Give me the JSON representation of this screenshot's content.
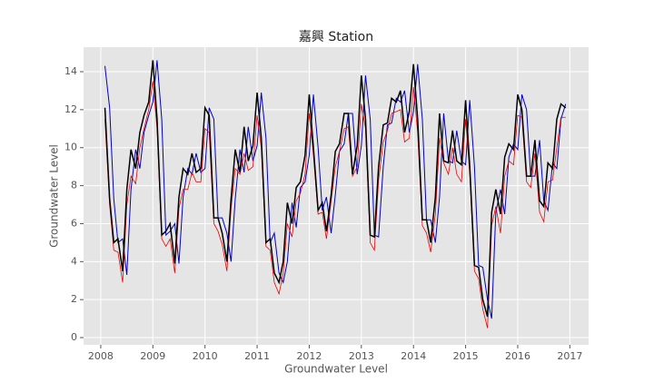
{
  "chart_data": {
    "type": "line",
    "title": "嘉興 Station",
    "x_label": "Groundwater Level",
    "y_label": "Groundwater Level",
    "x": [
      2008.08,
      2008.17,
      2008.25,
      2008.33,
      2008.42,
      2008.5,
      2008.58,
      2008.67,
      2008.75,
      2008.83,
      2008.92,
      2009,
      2009.08,
      2009.17,
      2009.25,
      2009.33,
      2009.42,
      2009.5,
      2009.58,
      2009.67,
      2009.75,
      2009.83,
      2009.92,
      2010,
      2010.08,
      2010.17,
      2010.25,
      2010.33,
      2010.42,
      2010.5,
      2010.58,
      2010.67,
      2010.75,
      2010.83,
      2010.92,
      2011,
      2011.08,
      2011.17,
      2011.25,
      2011.33,
      2011.42,
      2011.5,
      2011.58,
      2011.67,
      2011.75,
      2011.83,
      2011.92,
      2012,
      2012.08,
      2012.17,
      2012.25,
      2012.33,
      2012.42,
      2012.5,
      2012.58,
      2012.67,
      2012.75,
      2012.83,
      2012.92,
      2013,
      2013.08,
      2013.17,
      2013.25,
      2013.33,
      2013.42,
      2013.5,
      2013.58,
      2013.67,
      2013.75,
      2013.83,
      2013.92,
      2014,
      2014.08,
      2014.17,
      2014.25,
      2014.33,
      2014.42,
      2014.5,
      2014.58,
      2014.67,
      2014.75,
      2014.83,
      2014.92,
      2015,
      2015.08,
      2015.17,
      2015.25,
      2015.33,
      2015.42,
      2015.5,
      2015.58,
      2015.67,
      2015.75,
      2015.83,
      2015.92,
      2016,
      2016.08,
      2016.17,
      2016.25,
      2016.33,
      2016.42,
      2016.5,
      2016.58,
      2016.67,
      2016.75,
      2016.83,
      2016.92
    ],
    "series": [
      {
        "color": "#0000cc",
        "values": [
          14.3,
          12.1,
          7.3,
          5.0,
          5.2,
          3.3,
          7.8,
          9.9,
          8.9,
          10.8,
          11.7,
          12.4,
          14.6,
          11.5,
          5.4,
          5.6,
          6.0,
          3.9,
          7.4,
          8.9,
          8.6,
          9.7,
          8.7,
          8.9,
          12.1,
          11.5,
          6.3,
          6.3,
          5.5,
          4.0,
          7.3,
          9.9,
          8.7,
          11.1,
          9.3,
          10.1,
          12.9,
          10.5,
          5.0,
          5.5,
          3.4,
          2.9,
          4.0,
          7.1,
          5.8,
          7.9,
          8.2,
          9.6,
          12.8,
          10.0,
          6.7,
          7.4,
          5.5,
          7.5,
          9.8,
          10.2,
          11.8,
          11.8,
          8.6,
          10.1,
          13.8,
          11.5,
          5.4,
          5.3,
          9.0,
          11.2,
          11.3,
          12.6,
          12.4,
          13.0,
          10.8,
          11.9,
          14.4,
          11.5,
          6.2,
          6.2,
          5.0,
          7.4,
          11.8,
          9.3,
          9.2,
          10.9,
          9.3,
          9.1,
          12.5,
          9.0,
          3.8,
          3.7,
          2.0,
          1.0,
          6.6,
          7.8,
          6.5,
          9.5,
          10.2,
          9.9,
          12.8,
          12.0,
          8.5,
          8.5,
          10.4,
          7.2,
          6.7,
          9.2,
          8.9,
          11.5,
          12.3
        ]
      },
      {
        "color": "#ee0000",
        "values": [
          11.5,
          7.0,
          4.6,
          4.5,
          2.9,
          7.0,
          8.5,
          8.1,
          10.0,
          11.0,
          12.0,
          13.5,
          11.0,
          5.2,
          4.8,
          5.2,
          3.4,
          6.8,
          7.8,
          7.8,
          8.7,
          8.2,
          8.2,
          11.0,
          10.8,
          6.0,
          5.6,
          4.9,
          3.5,
          6.8,
          8.9,
          8.6,
          9.7,
          8.8,
          9.0,
          11.7,
          10.0,
          4.8,
          4.6,
          2.9,
          2.3,
          3.4,
          6.0,
          5.3,
          7.2,
          7.6,
          8.6,
          11.8,
          9.6,
          6.5,
          6.6,
          5.2,
          7.2,
          9.0,
          9.8,
          11.0,
          11.1,
          8.5,
          9.0,
          12.3,
          11.0,
          5.0,
          4.6,
          8.3,
          10.3,
          10.9,
          11.8,
          11.9,
          12.0,
          10.3,
          10.5,
          13.2,
          10.8,
          5.9,
          5.5,
          4.5,
          6.5,
          10.5,
          9.2,
          8.6,
          10.0,
          8.6,
          8.2,
          11.5,
          8.6,
          3.5,
          3.1,
          1.5,
          0.5,
          5.9,
          6.9,
          5.5,
          8.5,
          9.3,
          9.1,
          11.7,
          11.6,
          8.2,
          7.9,
          9.7,
          6.6,
          6.1,
          8.2,
          8.3,
          10.0,
          11.6,
          11.6
        ]
      },
      {
        "color": "#000000",
        "values": [
          12.1,
          7.3,
          5.0,
          5.2,
          3.5,
          7.8,
          9.9,
          8.9,
          10.8,
          11.7,
          12.4,
          14.6,
          11.5,
          5.4,
          5.6,
          6.0,
          3.9,
          7.4,
          8.9,
          8.6,
          9.7,
          8.7,
          8.9,
          12.1,
          11.7,
          6.3,
          6.3,
          5.5,
          4.0,
          7.3,
          9.9,
          8.7,
          11.1,
          9.3,
          10.1,
          12.9,
          10.5,
          5.0,
          5.2,
          3.4,
          2.9,
          4.0,
          7.1,
          6.0,
          7.9,
          8.2,
          9.6,
          12.8,
          10.0,
          6.7,
          7.1,
          5.6,
          7.5,
          9.8,
          10.2,
          11.8,
          11.8,
          8.6,
          10.1,
          13.8,
          11.5,
          5.4,
          5.3,
          9.0,
          11.2,
          11.3,
          12.6,
          12.4,
          13.0,
          10.8,
          11.9,
          14.4,
          11.5,
          6.2,
          6.2,
          5.0,
          7.4,
          11.8,
          9.3,
          9.2,
          10.9,
          9.3,
          9.1,
          12.5,
          9.0,
          3.8,
          3.7,
          2.0,
          1.1,
          6.6,
          7.8,
          6.5,
          9.5,
          10.2,
          9.9,
          12.8,
          12.0,
          8.5,
          8.5,
          10.4,
          7.2,
          6.9,
          9.2,
          8.9,
          11.5,
          12.3,
          12.1
        ]
      }
    ],
    "xlim": [
      2007.67,
      2017.36
    ],
    "ylim": [
      -0.38,
      15.29
    ],
    "xticks": [
      2008,
      2009,
      2010,
      2011,
      2012,
      2013,
      2014,
      2015,
      2016,
      2017
    ],
    "yticks": [
      0,
      2,
      4,
      6,
      8,
      10,
      12,
      14
    ],
    "grid": true
  }
}
